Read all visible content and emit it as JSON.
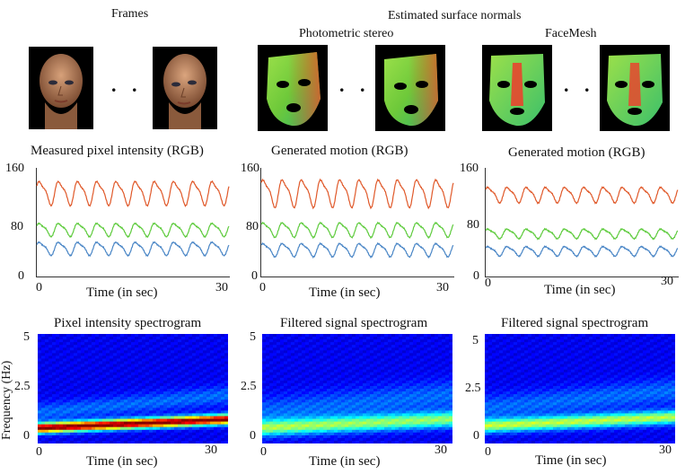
{
  "headers": {
    "frames": "Frames",
    "normals": "Estimated surface normals",
    "photometric": "Photometric stereo",
    "facemesh": "FaceMesh"
  },
  "ellipsis": ". . .",
  "rows": {
    "signals": {
      "titles": [
        "Measured pixel intensity (RGB)",
        "Generated motion (RGB)",
        "Generated motion (RGB)"
      ],
      "yticks": [
        "160",
        "80",
        "0"
      ],
      "xticks": [
        "0",
        "30"
      ],
      "xlabel": "Time (in sec)"
    },
    "spectrograms": {
      "titles": [
        "Pixel intensity spectrogram",
        "Filtered signal spectrogram",
        "Filtered signal spectrogram"
      ],
      "yticks": [
        "5",
        "2.5",
        "0"
      ],
      "xticks": [
        "0",
        "30"
      ],
      "xlabel": "Time (in sec)",
      "ylabel": "Frequency (Hz)"
    }
  },
  "chart_data": [
    {
      "type": "line",
      "title": "Measured pixel intensity (RGB)",
      "xlabel": "Time (in sec)",
      "ylabel": "",
      "xlim": [
        0,
        30
      ],
      "ylim": [
        0,
        160
      ],
      "yticks": [
        0,
        80,
        160
      ],
      "series": [
        {
          "color": "#e0592a",
          "base": 125,
          "amp": 20,
          "cycles": 10,
          "phase": 0.3
        },
        {
          "color": "#5ecb3d",
          "base": 70,
          "amp": 11,
          "cycles": 10,
          "phase": 0.3
        },
        {
          "color": "#4a86c6",
          "base": 42,
          "amp": 11,
          "cycles": 10,
          "phase": 0.3
        }
      ]
    },
    {
      "type": "line",
      "title": "Generated motion (RGB)",
      "xlabel": "Time (in sec)",
      "ylabel": "",
      "xlim": [
        0,
        30
      ],
      "ylim": [
        0,
        160
      ],
      "yticks": [
        0,
        80,
        160
      ],
      "series": [
        {
          "color": "#e0592a",
          "base": 125,
          "amp": 23,
          "cycles": 10,
          "phase": 0.5
        },
        {
          "color": "#5ecb3d",
          "base": 70,
          "amp": 12,
          "cycles": 10,
          "phase": 0.5
        },
        {
          "color": "#4a86c6",
          "base": 40,
          "amp": 11,
          "cycles": 10,
          "phase": 0.5
        }
      ]
    },
    {
      "type": "line",
      "title": "Generated motion (RGB)",
      "xlabel": "Time (in sec)",
      "ylabel": "",
      "xlim": [
        0,
        30
      ],
      "ylim": [
        0,
        160
      ],
      "yticks": [
        0,
        80,
        160
      ],
      "series": [
        {
          "color": "#e0592a",
          "base": 122,
          "amp": 13,
          "cycles": 10,
          "phase": 0.4
        },
        {
          "color": "#5ecb3d",
          "base": 64,
          "amp": 8,
          "cycles": 10,
          "phase": 0.4
        },
        {
          "color": "#4a86c6",
          "base": 38,
          "amp": 8,
          "cycles": 10,
          "phase": 0.4
        }
      ]
    },
    {
      "type": "heatmap",
      "title": "Pixel intensity spectrogram",
      "xlabel": "Time (in sec)",
      "ylabel": "Frequency (Hz)",
      "xlim": [
        0,
        30
      ],
      "ylim": [
        0,
        5
      ],
      "yticks": [
        0,
        2.5,
        5
      ],
      "ridge": {
        "start_hz": 0.7,
        "end_hz": 1.1,
        "strength": 1.0,
        "width": 0.22
      }
    },
    {
      "type": "heatmap",
      "title": "Filtered signal spectrogram",
      "xlabel": "Time (in sec)",
      "ylabel": "",
      "xlim": [
        0,
        30
      ],
      "ylim": [
        0,
        5
      ],
      "yticks": [
        0,
        2.5,
        5
      ],
      "ridge": {
        "start_hz": 0.7,
        "end_hz": 1.1,
        "strength": 0.45,
        "width": 0.35
      }
    },
    {
      "type": "heatmap",
      "title": "Filtered signal spectrogram",
      "xlabel": "Time (in sec)",
      "ylabel": "",
      "xlim": [
        0,
        30
      ],
      "ylim": [
        0,
        5
      ],
      "yticks": [
        0,
        2.5,
        5
      ],
      "ridge": {
        "start_hz": 0.8,
        "end_hz": 1.2,
        "strength": 0.5,
        "width": 0.3
      }
    }
  ]
}
